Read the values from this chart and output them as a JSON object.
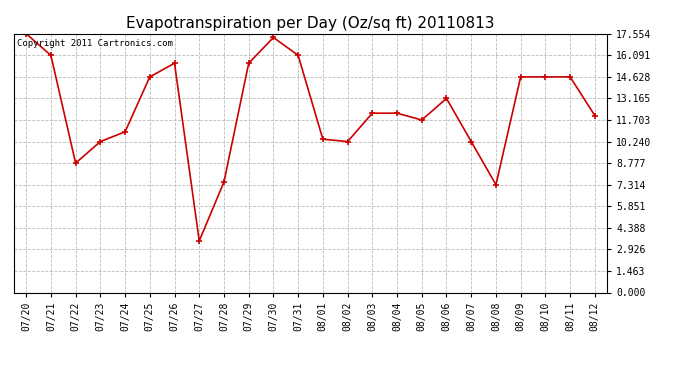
{
  "title": "Evapotranspiration per Day (Oz/sq ft) 20110813",
  "copyright_text": "Copyright 2011 Cartronics.com",
  "x_labels": [
    "07/20",
    "07/21",
    "07/22",
    "07/23",
    "07/24",
    "07/25",
    "07/26",
    "07/27",
    "07/28",
    "07/29",
    "07/30",
    "07/31",
    "08/01",
    "08/02",
    "08/03",
    "08/04",
    "08/05",
    "08/06",
    "08/07",
    "08/08",
    "08/09",
    "08/10",
    "08/11",
    "08/12"
  ],
  "y_values": [
    17.554,
    16.091,
    8.777,
    10.24,
    10.9,
    14.628,
    15.554,
    3.5,
    7.5,
    15.554,
    17.3,
    16.091,
    10.4,
    10.24,
    12.165,
    12.165,
    11.703,
    13.165,
    10.24,
    7.314,
    14.628,
    14.628,
    14.628,
    12.0
  ],
  "yticks": [
    0.0,
    1.463,
    2.926,
    4.388,
    5.851,
    7.314,
    8.777,
    10.24,
    11.703,
    13.165,
    14.628,
    16.091,
    17.554
  ],
  "line_color": "#cc0000",
  "marker": "+",
  "bg_color": "#ffffff",
  "grid_color": "#bbbbbb",
  "title_fontsize": 11,
  "tick_fontsize": 7,
  "ylim": [
    0,
    17.554
  ]
}
